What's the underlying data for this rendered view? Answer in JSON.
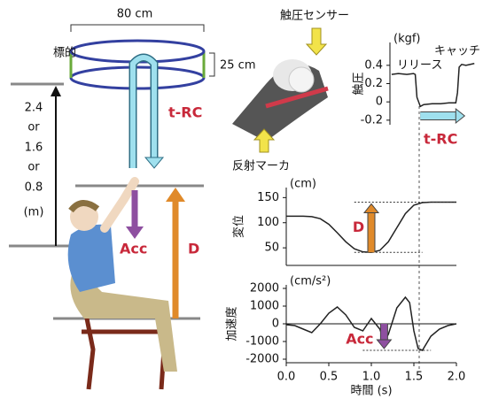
{
  "diagram": {
    "width_label": "80 cm",
    "target": "標的",
    "height_label": "25 cm",
    "t_rc": "t-RC",
    "heights": [
      "2.4",
      "or",
      "1.6",
      "or",
      "0.8",
      "(m)"
    ],
    "acc": "Acc",
    "d": "D",
    "sensor": "触圧センサー",
    "marker": "反射マーカ"
  },
  "chart_data": [
    {
      "type": "line",
      "unit": "(kgf)",
      "ylabel": "触圧",
      "annotations": [
        "リリース",
        "キャッチ",
        "t-RC"
      ],
      "x": [
        1.22,
        1.3,
        1.4,
        1.48,
        1.5,
        1.52,
        1.56,
        1.6,
        1.7,
        1.8,
        1.9,
        1.98,
        2.0,
        2.02,
        2.05,
        2.1,
        2.2
      ],
      "series": [
        {
          "color": "#222222",
          "values": [
            0.3,
            0.31,
            0.3,
            0.31,
            0.3,
            0.05,
            -0.05,
            -0.03,
            -0.02,
            -0.02,
            -0.01,
            -0.01,
            0.1,
            0.38,
            0.41,
            0.4,
            0.42
          ]
        }
      ],
      "xlim": [
        1.2,
        2.25
      ],
      "ylim": [
        -0.25,
        0.65
      ],
      "yticks": [
        0.4,
        0.2,
        0,
        -0.2
      ]
    },
    {
      "type": "line",
      "unit": "(cm)",
      "ylabel": "変位",
      "annotations": [
        "D"
      ],
      "x": [
        0,
        0.1,
        0.2,
        0.3,
        0.4,
        0.5,
        0.6,
        0.7,
        0.8,
        0.9,
        1.0,
        1.1,
        1.2,
        1.3,
        1.4,
        1.5,
        1.6,
        1.7,
        1.8,
        1.9,
        2.0
      ],
      "series": [
        {
          "color": "#222222",
          "values": [
            113,
            113,
            113,
            112,
            108,
            97,
            80,
            62,
            48,
            42,
            41,
            45,
            62,
            90,
            118,
            135,
            140,
            141,
            141,
            141,
            141
          ]
        }
      ],
      "xlim": [
        0,
        2.0
      ],
      "ylim": [
        15,
        170
      ],
      "yticks": [
        150,
        100,
        50
      ]
    },
    {
      "type": "line",
      "unit": "(cm/s²)",
      "ylabel": "加速度",
      "xlabel": "時間 (s)",
      "annotations": [
        "Acc"
      ],
      "x": [
        0,
        0.1,
        0.2,
        0.3,
        0.4,
        0.5,
        0.6,
        0.7,
        0.8,
        0.9,
        1.0,
        1.1,
        1.15,
        1.2,
        1.3,
        1.4,
        1.45,
        1.5,
        1.55,
        1.6,
        1.7,
        1.8,
        1.9,
        2.0
      ],
      "series": [
        {
          "color": "#222222",
          "values": [
            -50,
            -100,
            -300,
            -500,
            0,
            600,
            950,
            500,
            -200,
            -400,
            300,
            -300,
            -1000,
            -600,
            900,
            1500,
            1200,
            -400,
            -1400,
            -1500,
            -700,
            -300,
            -100,
            0
          ]
        }
      ],
      "xlim": [
        0,
        2.0
      ],
      "ylim": [
        -2200,
        2200
      ],
      "yticks": [
        2000,
        1000,
        0,
        -1000,
        -2000
      ],
      "xticks": [
        {
          "value": 0,
          "label": "0.0"
        },
        0.5,
        {
          "value": 1,
          "label": "1.0"
        },
        1.5,
        {
          "value": 2,
          "label": "2.0"
        }
      ]
    }
  ]
}
